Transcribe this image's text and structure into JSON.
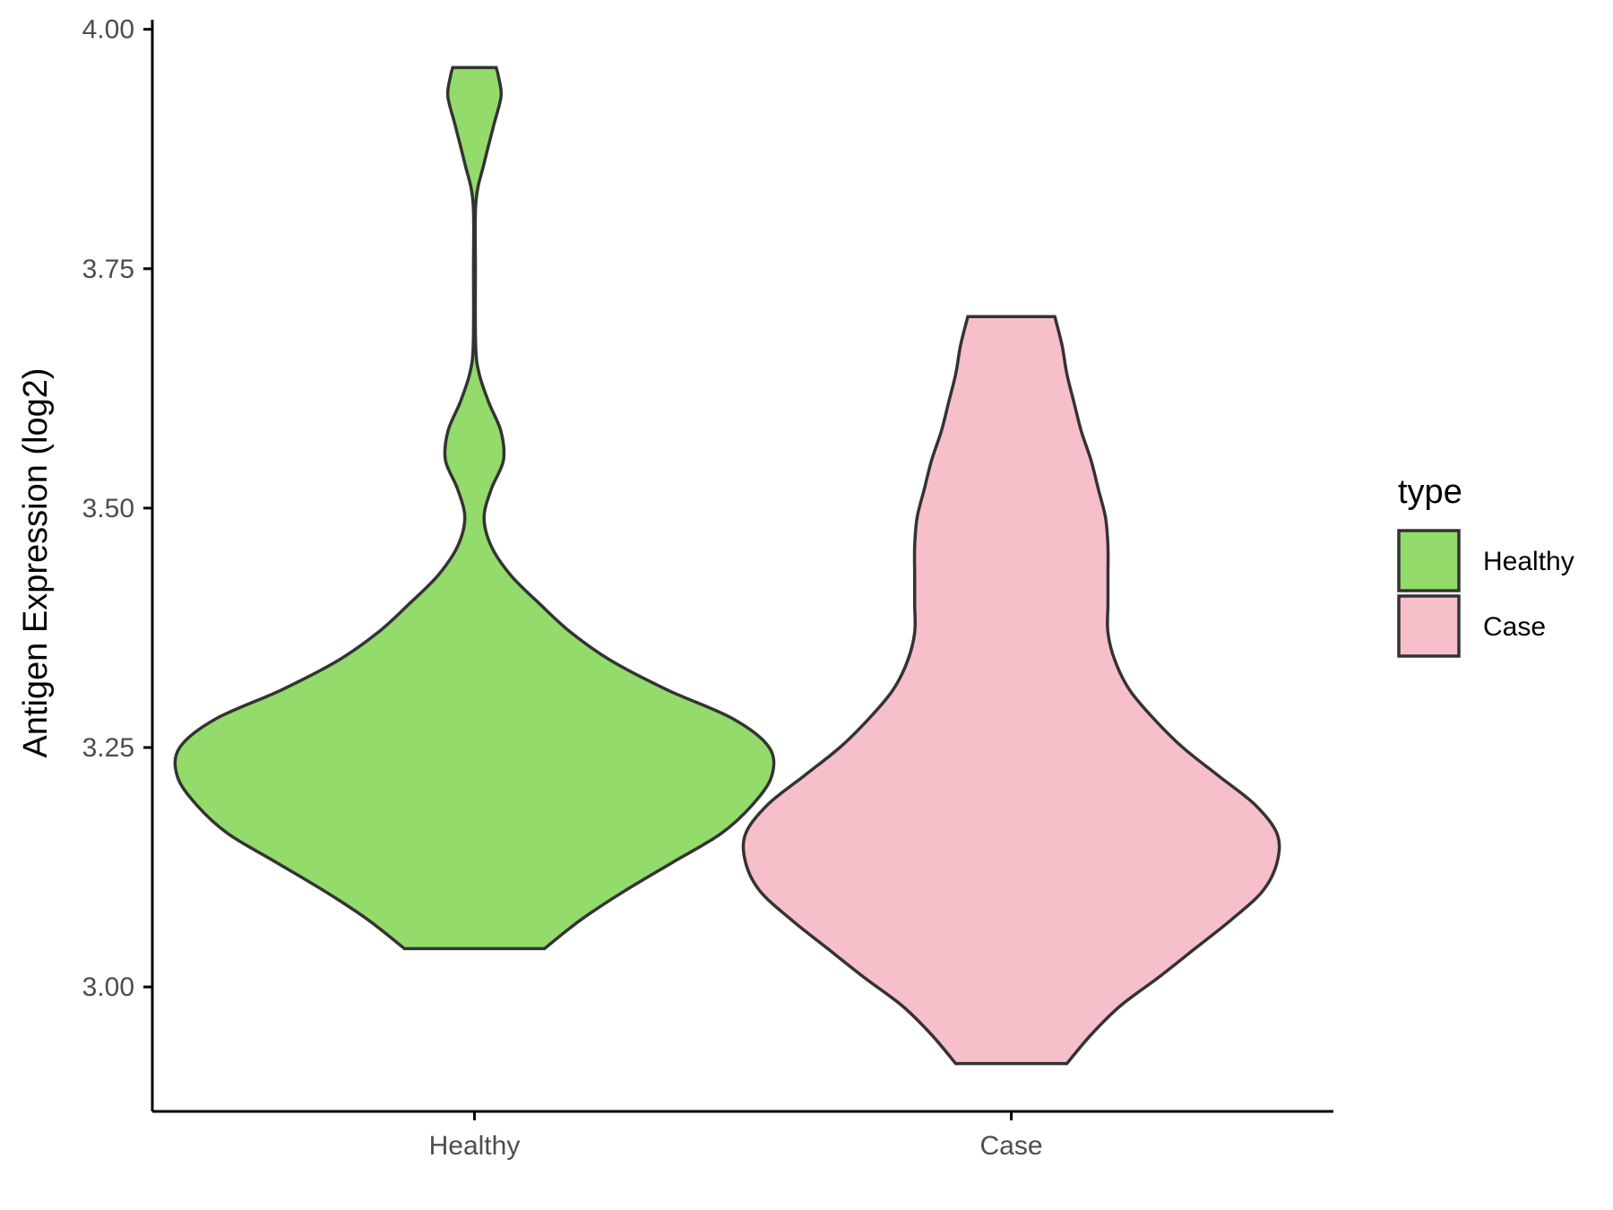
{
  "chart_data": {
    "type": "violin",
    "title": "",
    "xlabel": "",
    "ylabel": "Antigen Expression (log2)",
    "ylim": [
      2.87,
      4.01
    ],
    "yticks": [
      "3.00",
      "3.25",
      "3.50",
      "3.75",
      "4.00"
    ],
    "grid": false,
    "legend": {
      "title": "type",
      "position": "right"
    },
    "categories": [
      "Healthy",
      "Case"
    ],
    "series": [
      {
        "name": "Healthy",
        "color": "#93DB6A",
        "min": 3.04,
        "max": 3.96,
        "density": [
          [
            3.04,
            0.29
          ],
          [
            3.07,
            0.44
          ],
          [
            3.1,
            0.62
          ],
          [
            3.13,
            0.82
          ],
          [
            3.16,
            1.02
          ],
          [
            3.19,
            1.15
          ],
          [
            3.22,
            1.23
          ],
          [
            3.25,
            1.22
          ],
          [
            3.28,
            1.07
          ],
          [
            3.31,
            0.8
          ],
          [
            3.34,
            0.57
          ],
          [
            3.37,
            0.4
          ],
          [
            3.4,
            0.27
          ],
          [
            3.43,
            0.15
          ],
          [
            3.46,
            0.07
          ],
          [
            3.49,
            0.04
          ],
          [
            3.52,
            0.07
          ],
          [
            3.55,
            0.12
          ],
          [
            3.58,
            0.11
          ],
          [
            3.61,
            0.06
          ],
          [
            3.64,
            0.02
          ],
          [
            3.67,
            0.005
          ],
          [
            3.75,
            0.004
          ],
          [
            3.82,
            0.006
          ],
          [
            3.86,
            0.04
          ],
          [
            3.9,
            0.08
          ],
          [
            3.93,
            0.11
          ],
          [
            3.95,
            0.1
          ],
          [
            3.96,
            0.09
          ]
        ]
      },
      {
        "name": "Case",
        "color": "#F7BFCA",
        "min": 2.92,
        "max": 3.7,
        "density": [
          [
            2.92,
            0.23
          ],
          [
            2.95,
            0.33
          ],
          [
            2.98,
            0.45
          ],
          [
            3.01,
            0.61
          ],
          [
            3.04,
            0.76
          ],
          [
            3.07,
            0.91
          ],
          [
            3.1,
            1.04
          ],
          [
            3.13,
            1.1
          ],
          [
            3.16,
            1.1
          ],
          [
            3.19,
            1.01
          ],
          [
            3.22,
            0.86
          ],
          [
            3.25,
            0.71
          ],
          [
            3.28,
            0.59
          ],
          [
            3.31,
            0.49
          ],
          [
            3.34,
            0.43
          ],
          [
            3.37,
            0.4
          ],
          [
            3.4,
            0.4
          ],
          [
            3.43,
            0.4
          ],
          [
            3.46,
            0.4
          ],
          [
            3.49,
            0.39
          ],
          [
            3.52,
            0.36
          ],
          [
            3.55,
            0.33
          ],
          [
            3.58,
            0.29
          ],
          [
            3.61,
            0.26
          ],
          [
            3.64,
            0.23
          ],
          [
            3.67,
            0.21
          ],
          [
            3.7,
            0.18
          ]
        ]
      }
    ]
  }
}
